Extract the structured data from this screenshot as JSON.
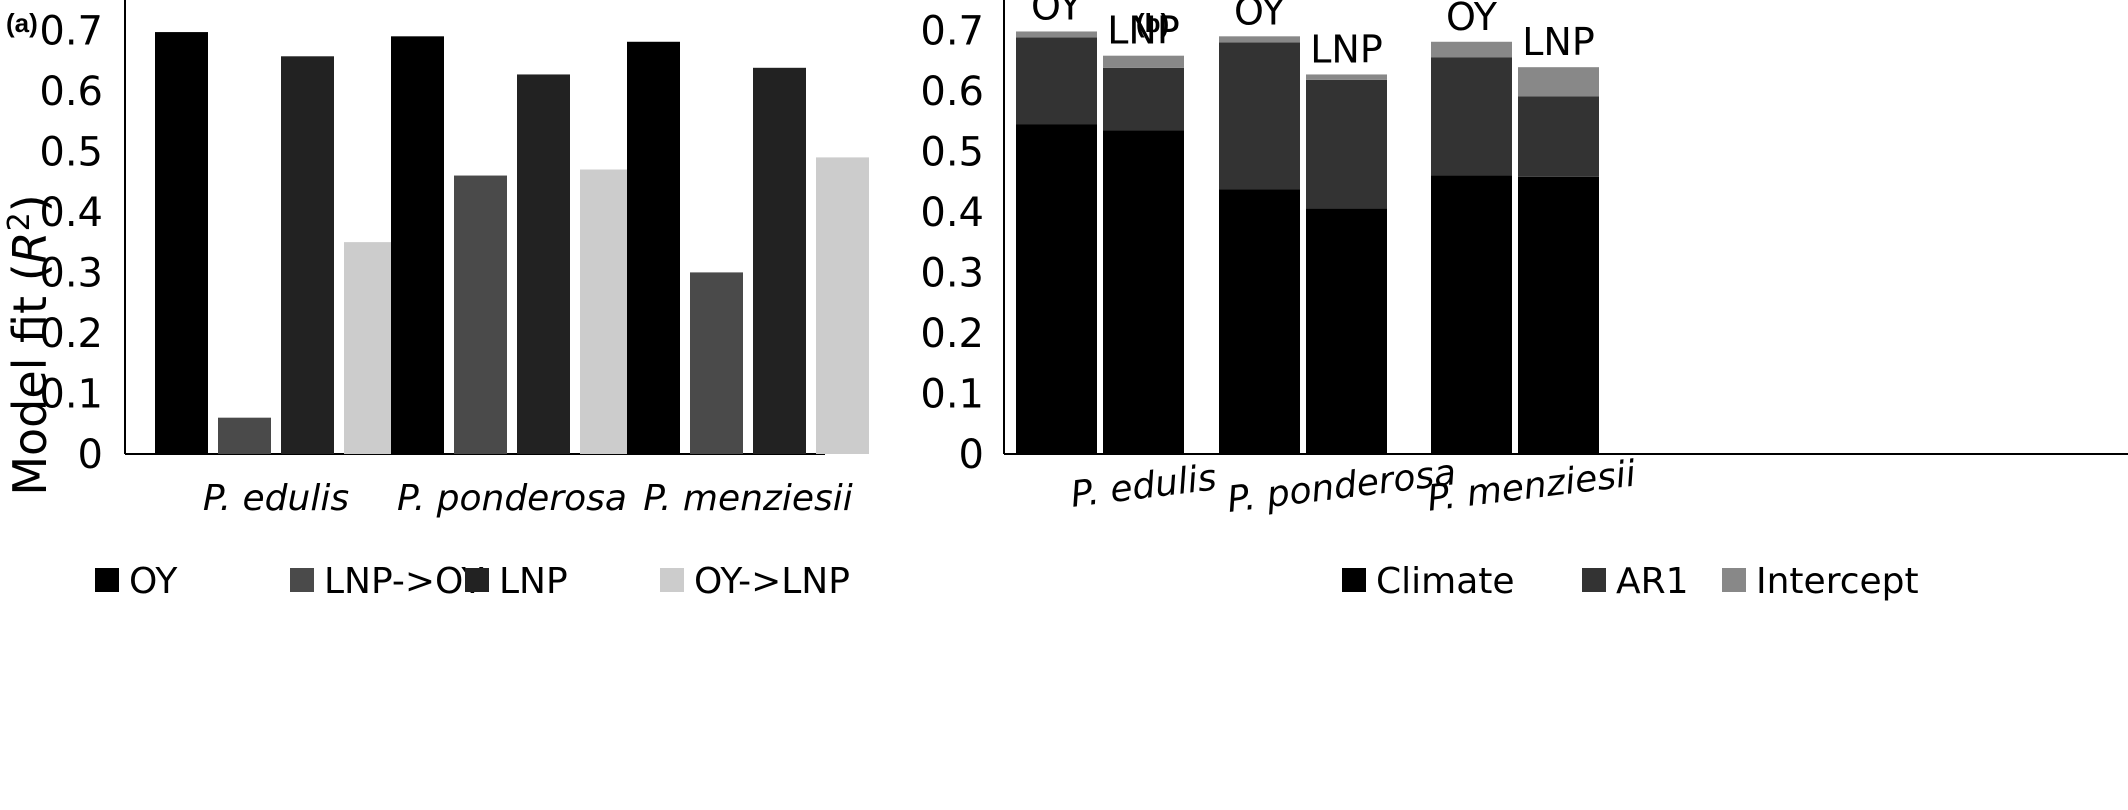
{
  "chart_data": [
    {
      "panel": "(a)",
      "type": "bar",
      "ylabel_prefix": "Model fit (",
      "ylabel_italic": "R",
      "ylabel_sup": "2",
      "ylabel_suffix": ")",
      "ylim": [
        0,
        0.75
      ],
      "yticks": [
        "0",
        "0.1",
        "0.2",
        "0.3",
        "0.4",
        "0.5",
        "0.6",
        "0.7"
      ],
      "categories": [
        "P. edulis",
        "P. ponderosa",
        "P. menziesii"
      ],
      "series": [
        {
          "name": "OY",
          "color": "#000000",
          "values": [
            0.697,
            0.69,
            0.681
          ]
        },
        {
          "name": "LNP->OY",
          "color": "#4a4a4a",
          "values": [
            0.06,
            0.46,
            0.3
          ]
        },
        {
          "name": "LNP",
          "color": "#222222",
          "values": [
            0.657,
            0.627,
            0.638
          ]
        },
        {
          "name": "OY->LNP",
          "color": "#cccccc",
          "values": [
            0.35,
            0.47,
            0.49
          ]
        }
      ],
      "grid": false,
      "legend": "bottom"
    },
    {
      "panel": "(b)",
      "type": "bar",
      "stacked": true,
      "ylim": [
        0,
        0.75
      ],
      "yticks": [
        "0",
        "0.1",
        "0.2",
        "0.3",
        "0.4",
        "0.5",
        "0.6",
        "0.7"
      ],
      "categories": [
        "P. edulis",
        "P. ponderosa",
        "P. menziesii"
      ],
      "bar_labels": [
        "OY",
        "LNP"
      ],
      "series": [
        {
          "name": "Climate",
          "color": "#000000",
          "OY": [
            0.545,
            0.437,
            0.46
          ],
          "LNP": [
            0.535,
            0.406,
            0.458
          ]
        },
        {
          "name": "AR1",
          "color": "#333333",
          "OY": [
            0.143,
            0.243,
            0.195
          ],
          "LNP": [
            0.103,
            0.212,
            0.133
          ]
        },
        {
          "name": "Intercept",
          "color": "#888888",
          "OY": [
            0.01,
            0.01,
            0.026
          ],
          "LNP": [
            0.02,
            0.009,
            0.048
          ]
        }
      ],
      "grid": false,
      "legend": "bottom"
    }
  ]
}
